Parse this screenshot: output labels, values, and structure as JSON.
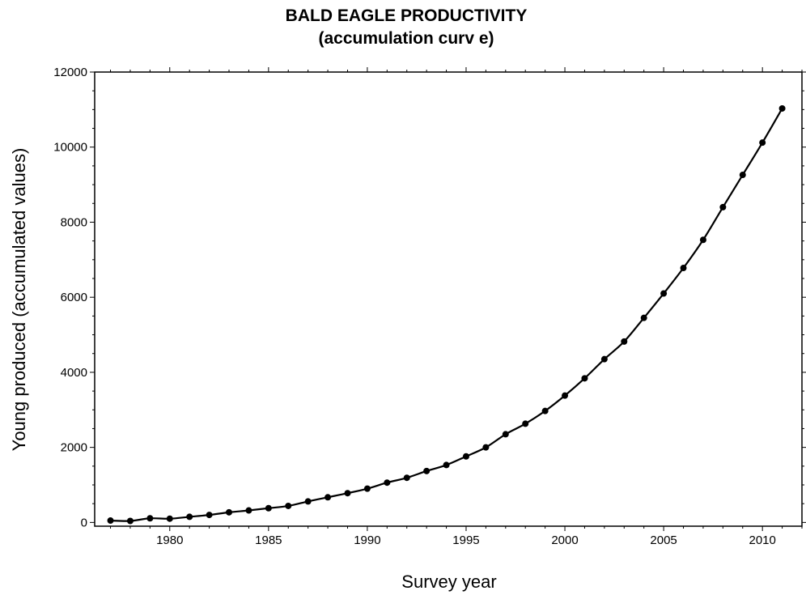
{
  "chart_data": {
    "type": "line",
    "title_line1": "BALD EAGLE PRODUCTIVITY",
    "title_line2": "(accumulation curv e)",
    "xlabel": "Survey year",
    "ylabel": "Young produced (accumulated values)",
    "xlim": [
      1976.2,
      2012.0
    ],
    "ylim": [
      -100,
      12000
    ],
    "x_ticks": [
      1980,
      1985,
      1990,
      1995,
      2000,
      2005,
      2010
    ],
    "y_ticks": [
      0,
      2000,
      4000,
      6000,
      8000,
      10000,
      12000
    ],
    "grid": false,
    "legend": "none",
    "series": [
      {
        "marker": "circle",
        "x": [
          1977,
          1978,
          1979,
          1980,
          1981,
          1982,
          1983,
          1984,
          1985,
          1986,
          1987,
          1988,
          1989,
          1990,
          1991,
          1992,
          1993,
          1994,
          1995,
          1996,
          1997,
          1998,
          1999,
          2000,
          2001,
          2002,
          2003,
          2004,
          2005,
          2006,
          2007,
          2008,
          2009,
          2010,
          2011
        ],
        "y": [
          50,
          40,
          110,
          100,
          150,
          200,
          270,
          320,
          380,
          440,
          560,
          670,
          780,
          900,
          1060,
          1190,
          1370,
          1530,
          1760,
          2000,
          2350,
          2630,
          2970,
          3380,
          3840,
          4350,
          4820,
          5450,
          6100,
          6780,
          7530,
          8400,
          9260,
          10120,
          11030
        ]
      }
    ]
  }
}
